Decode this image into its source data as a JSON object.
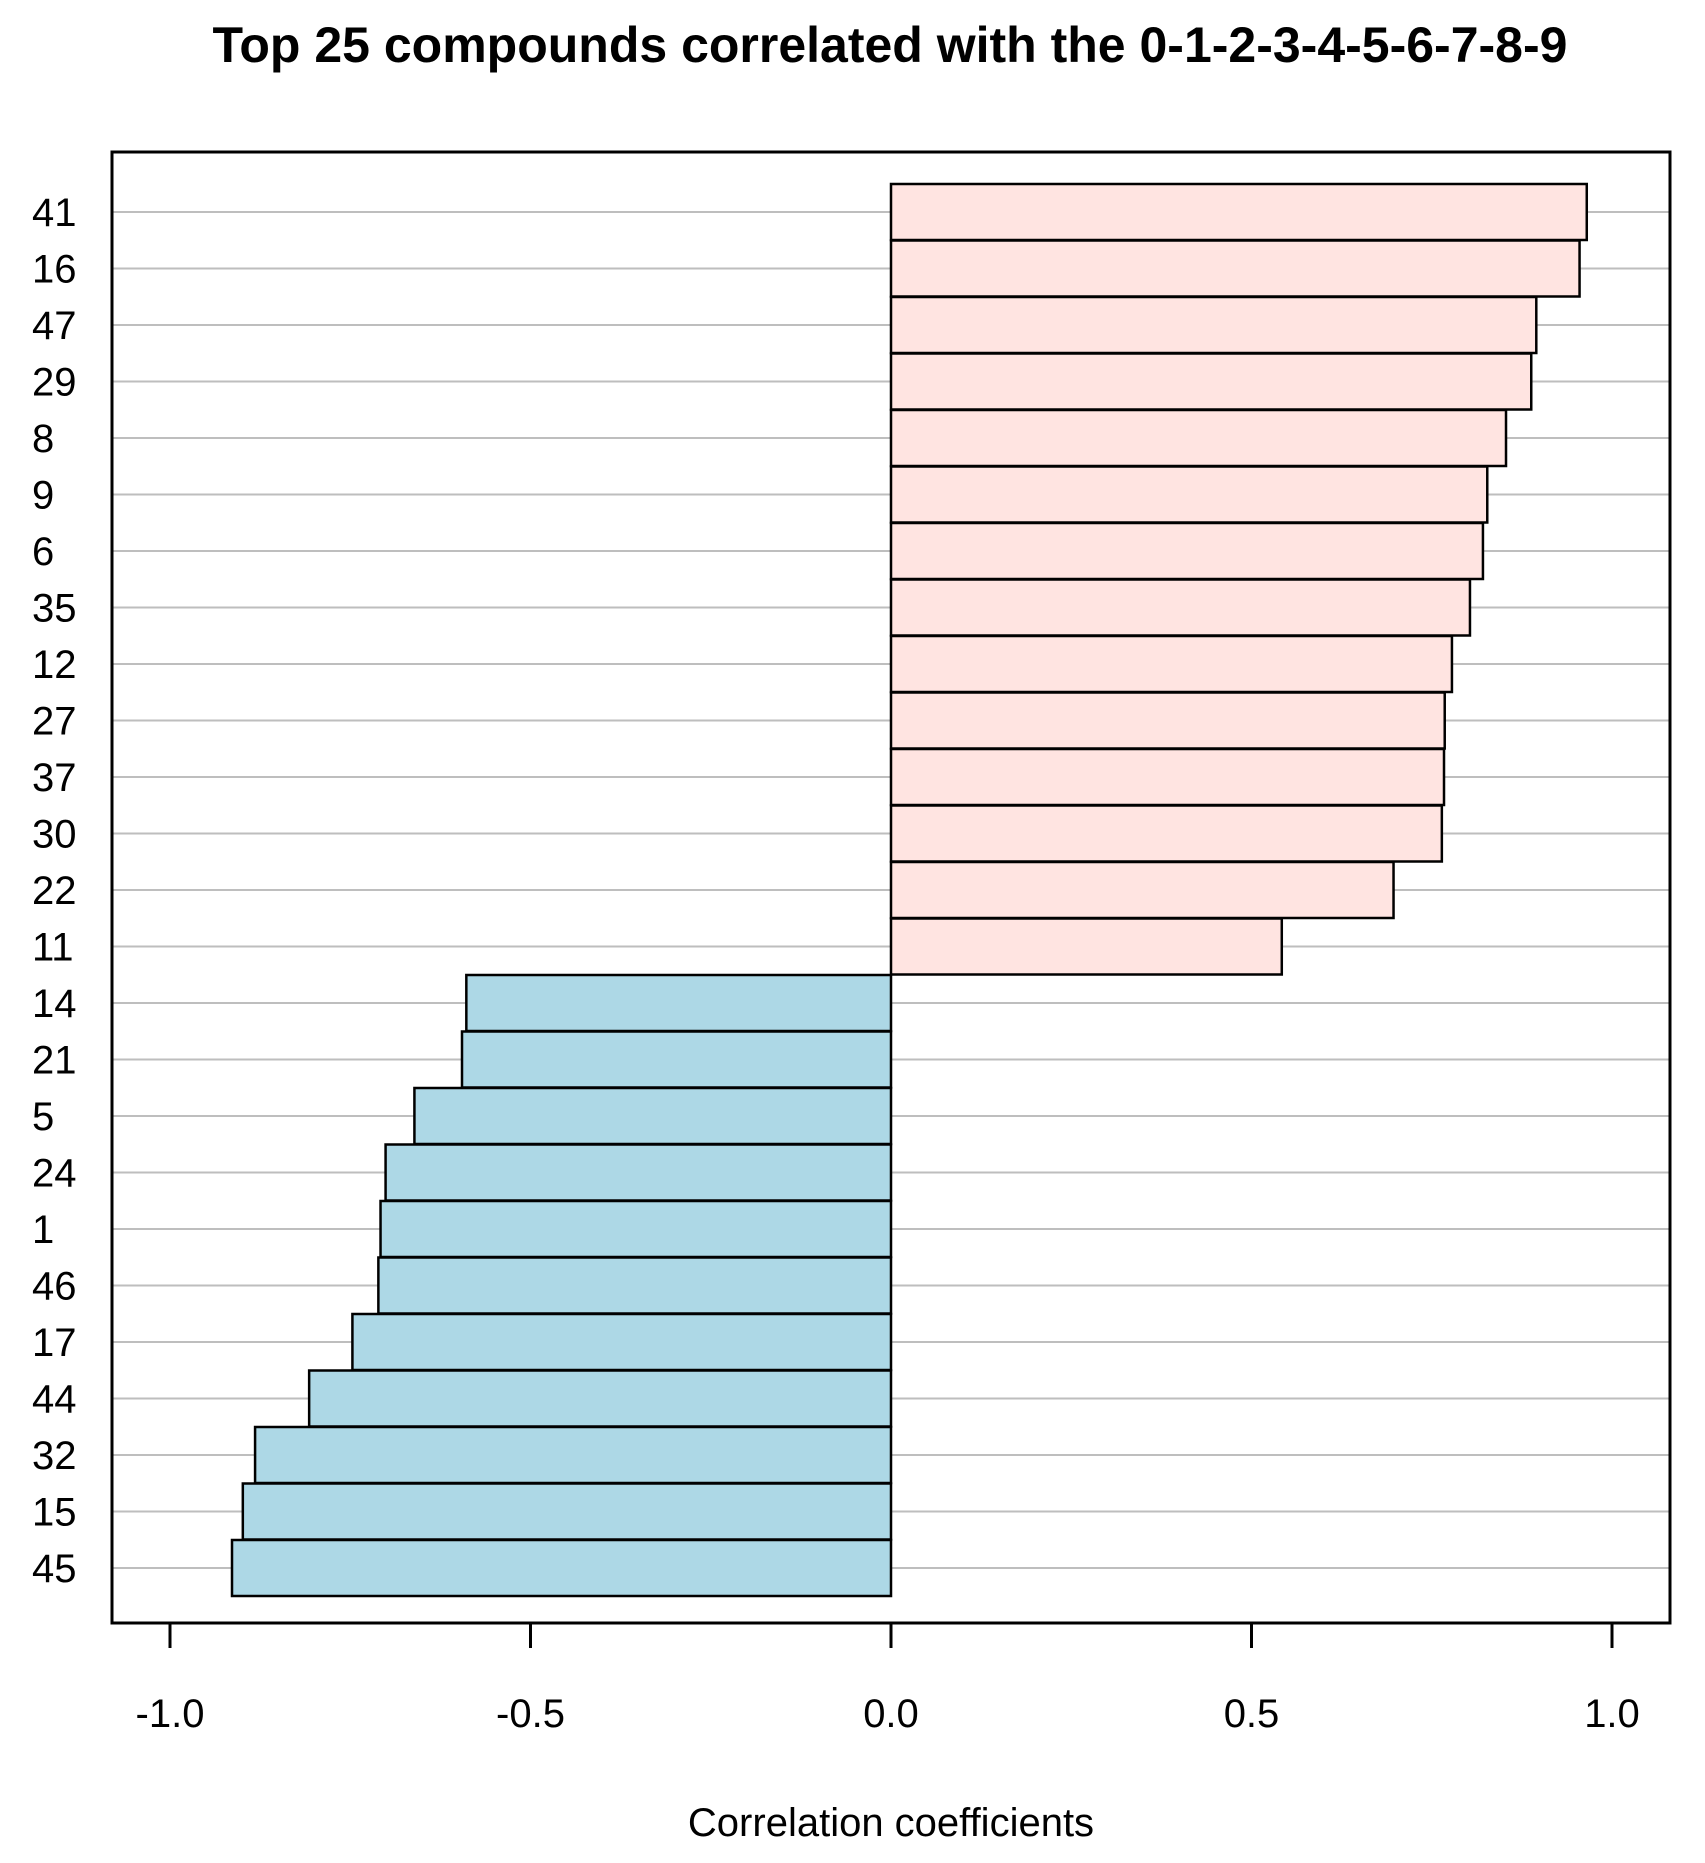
{
  "chart_data": {
    "type": "bar",
    "orientation": "horizontal",
    "title": "Top 25 compounds correlated with the 0-1-2-3-4-5-6-7-8-9",
    "xlabel": "Correlation coefficients",
    "ylabel": "",
    "xlim": [
      -1.0,
      1.0
    ],
    "x_ticks": [
      "-1.0",
      "-0.5",
      "0.0",
      "0.5",
      "1.0"
    ],
    "x_tick_values": [
      -1.0,
      -0.5,
      0.0,
      0.5,
      1.0
    ],
    "grid": "horizontal",
    "categories": [
      "41",
      "16",
      "47",
      "29",
      "8",
      "9",
      "6",
      "35",
      "12",
      "27",
      "37",
      "30",
      "22",
      "11",
      "14",
      "21",
      "5",
      "24",
      "1",
      "46",
      "17",
      "44",
      "32",
      "15",
      "45"
    ],
    "values": [
      0.965,
      0.955,
      0.895,
      0.888,
      0.853,
      0.827,
      0.821,
      0.803,
      0.778,
      0.768,
      0.767,
      0.764,
      0.697,
      0.542,
      -0.589,
      -0.595,
      -0.661,
      -0.701,
      -0.708,
      -0.711,
      -0.747,
      -0.807,
      -0.882,
      -0.899,
      -0.914
    ],
    "colors": {
      "positive": "#ffe4e1",
      "negative": "#add8e6",
      "edge": "#000000",
      "grid": "#bebebe"
    }
  }
}
